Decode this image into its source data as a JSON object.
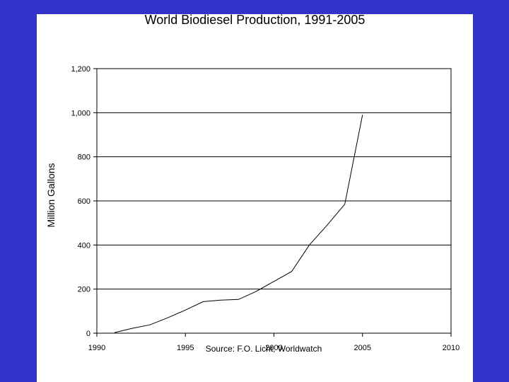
{
  "background_color": "#3333cc",
  "panel_color": "#ffffff",
  "chart_data": {
    "type": "line",
    "title": "World Biodiesel Production, 1991-2005",
    "xlabel": "",
    "ylabel": "Million Gallons",
    "source": "Source: F.O. Licht, Worldwatch",
    "xlim": [
      1990,
      2010
    ],
    "ylim": [
      0,
      1200
    ],
    "x_ticks": [
      1990,
      1995,
      2000,
      2005,
      2010
    ],
    "y_ticks": [
      0,
      200,
      400,
      600,
      800,
      1000,
      1200
    ],
    "y_tick_labels": [
      "0",
      "200",
      "400",
      "600",
      "800",
      "1,000",
      "1,200"
    ],
    "grid": "horizontal",
    "line_color": "#000000",
    "series": [
      {
        "x": [
          1991,
          1992,
          1993,
          1994,
          1995,
          1996,
          1997,
          1998,
          1999,
          2000,
          2001,
          2002,
          2003,
          2004,
          2005
        ],
        "y": [
          3,
          22,
          38,
          70,
          105,
          143,
          150,
          153,
          190,
          235,
          280,
          400,
          490,
          585,
          990
        ]
      }
    ]
  }
}
